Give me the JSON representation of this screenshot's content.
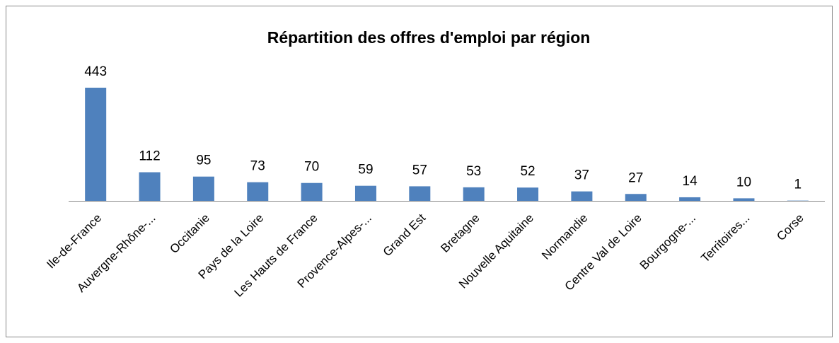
{
  "chart_data": {
    "type": "bar",
    "title": "Répartition des offres d'emploi par région",
    "categories": [
      "Ile-de-France",
      "Auvergne-Rhône-...",
      "Occitanie",
      "Pays de la Loire",
      "Les Hauts de France",
      "Provence-Alpes-...",
      "Grand Est",
      "Bretagne",
      "Nouvelle Aquitaine",
      "Normandie",
      "Centre Val de Loire",
      "Bourgogne-...",
      "Territoires...",
      "Corse"
    ],
    "values": [
      443,
      112,
      95,
      73,
      70,
      59,
      57,
      53,
      52,
      37,
      27,
      14,
      10,
      1
    ],
    "color": "#4f81bd"
  }
}
